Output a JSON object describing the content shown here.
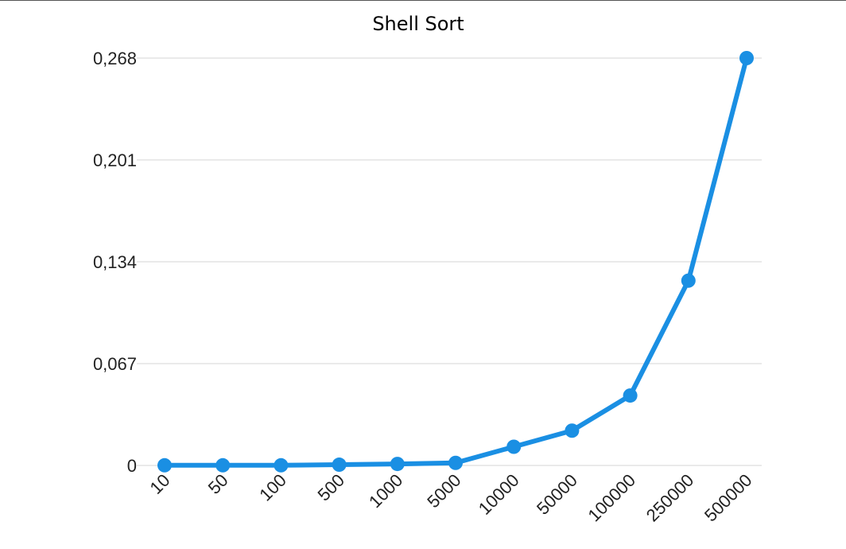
{
  "chart_data": {
    "type": "line",
    "title": "Shell Sort",
    "xlabel": "",
    "ylabel": "",
    "categories": [
      "10",
      "50",
      "100",
      "500",
      "1000",
      "5000",
      "10000",
      "50000",
      "100000",
      "250000",
      "500000"
    ],
    "series": [
      {
        "values": [
          0.0001,
          0.0001,
          0.0001,
          0.0005,
          0.001,
          0.0017,
          0.0123,
          0.0229,
          0.046,
          0.1216,
          0.268
        ],
        "color": "#1a8fe3"
      }
    ],
    "yticks": [
      "0",
      "0,067",
      "0,134",
      "0,201",
      "0,268"
    ],
    "ytick_values": [
      0,
      0.067,
      0.134,
      0.201,
      0.268
    ],
    "ylim": [
      0,
      0.268
    ],
    "grid": true,
    "legend": "none",
    "markers": true
  }
}
